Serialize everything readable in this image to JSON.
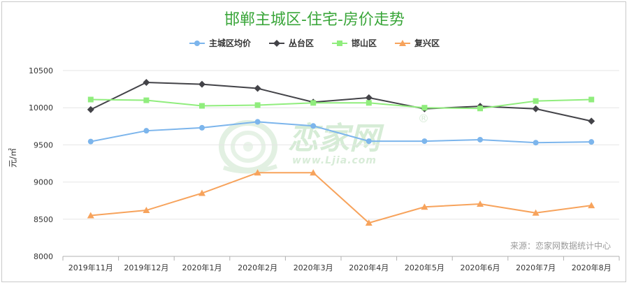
{
  "title": "邯郸主城区-住宅-房价走势",
  "watermark": {
    "brand_text": "恋家网",
    "url_text": "www.Ljia.com",
    "registered_mark": "®"
  },
  "source_text": "来源：恋家网数据统计中心",
  "chart_data": {
    "type": "line",
    "title": "邯郸主城区-住宅-房价走势",
    "ylabel": "元/㎡",
    "xlabel": "",
    "ylim": [
      8000,
      10500
    ],
    "yticks": [
      8000,
      8500,
      9000,
      9500,
      10000,
      10500
    ],
    "grid": true,
    "legend_position": "top",
    "categories": [
      "2019年11月",
      "2019年12月",
      "2020年1月",
      "2020年2月",
      "2020年3月",
      "2020年4月",
      "2020年5月",
      "2020年6月",
      "2020年7月",
      "2020年8月"
    ],
    "series": [
      {
        "name": "主城区均价",
        "color": "#7cb5ec",
        "marker": "circle",
        "values": [
          9545,
          9690,
          9730,
          9810,
          9755,
          9550,
          9550,
          9570,
          9530,
          9540
        ]
      },
      {
        "name": "丛台区",
        "color": "#434348",
        "marker": "diamond",
        "values": [
          9975,
          10340,
          10315,
          10260,
          10075,
          10135,
          9985,
          10020,
          9985,
          9820
        ]
      },
      {
        "name": "邯山区",
        "color": "#90ed7d",
        "marker": "square",
        "values": [
          10110,
          10100,
          10025,
          10035,
          10065,
          10065,
          10000,
          9990,
          10090,
          10110
        ]
      },
      {
        "name": "复兴区",
        "color": "#f7a35c",
        "marker": "triangle",
        "values": [
          8550,
          8620,
          8850,
          9125,
          9125,
          8450,
          8665,
          8705,
          8585,
          8685
        ]
      }
    ]
  }
}
